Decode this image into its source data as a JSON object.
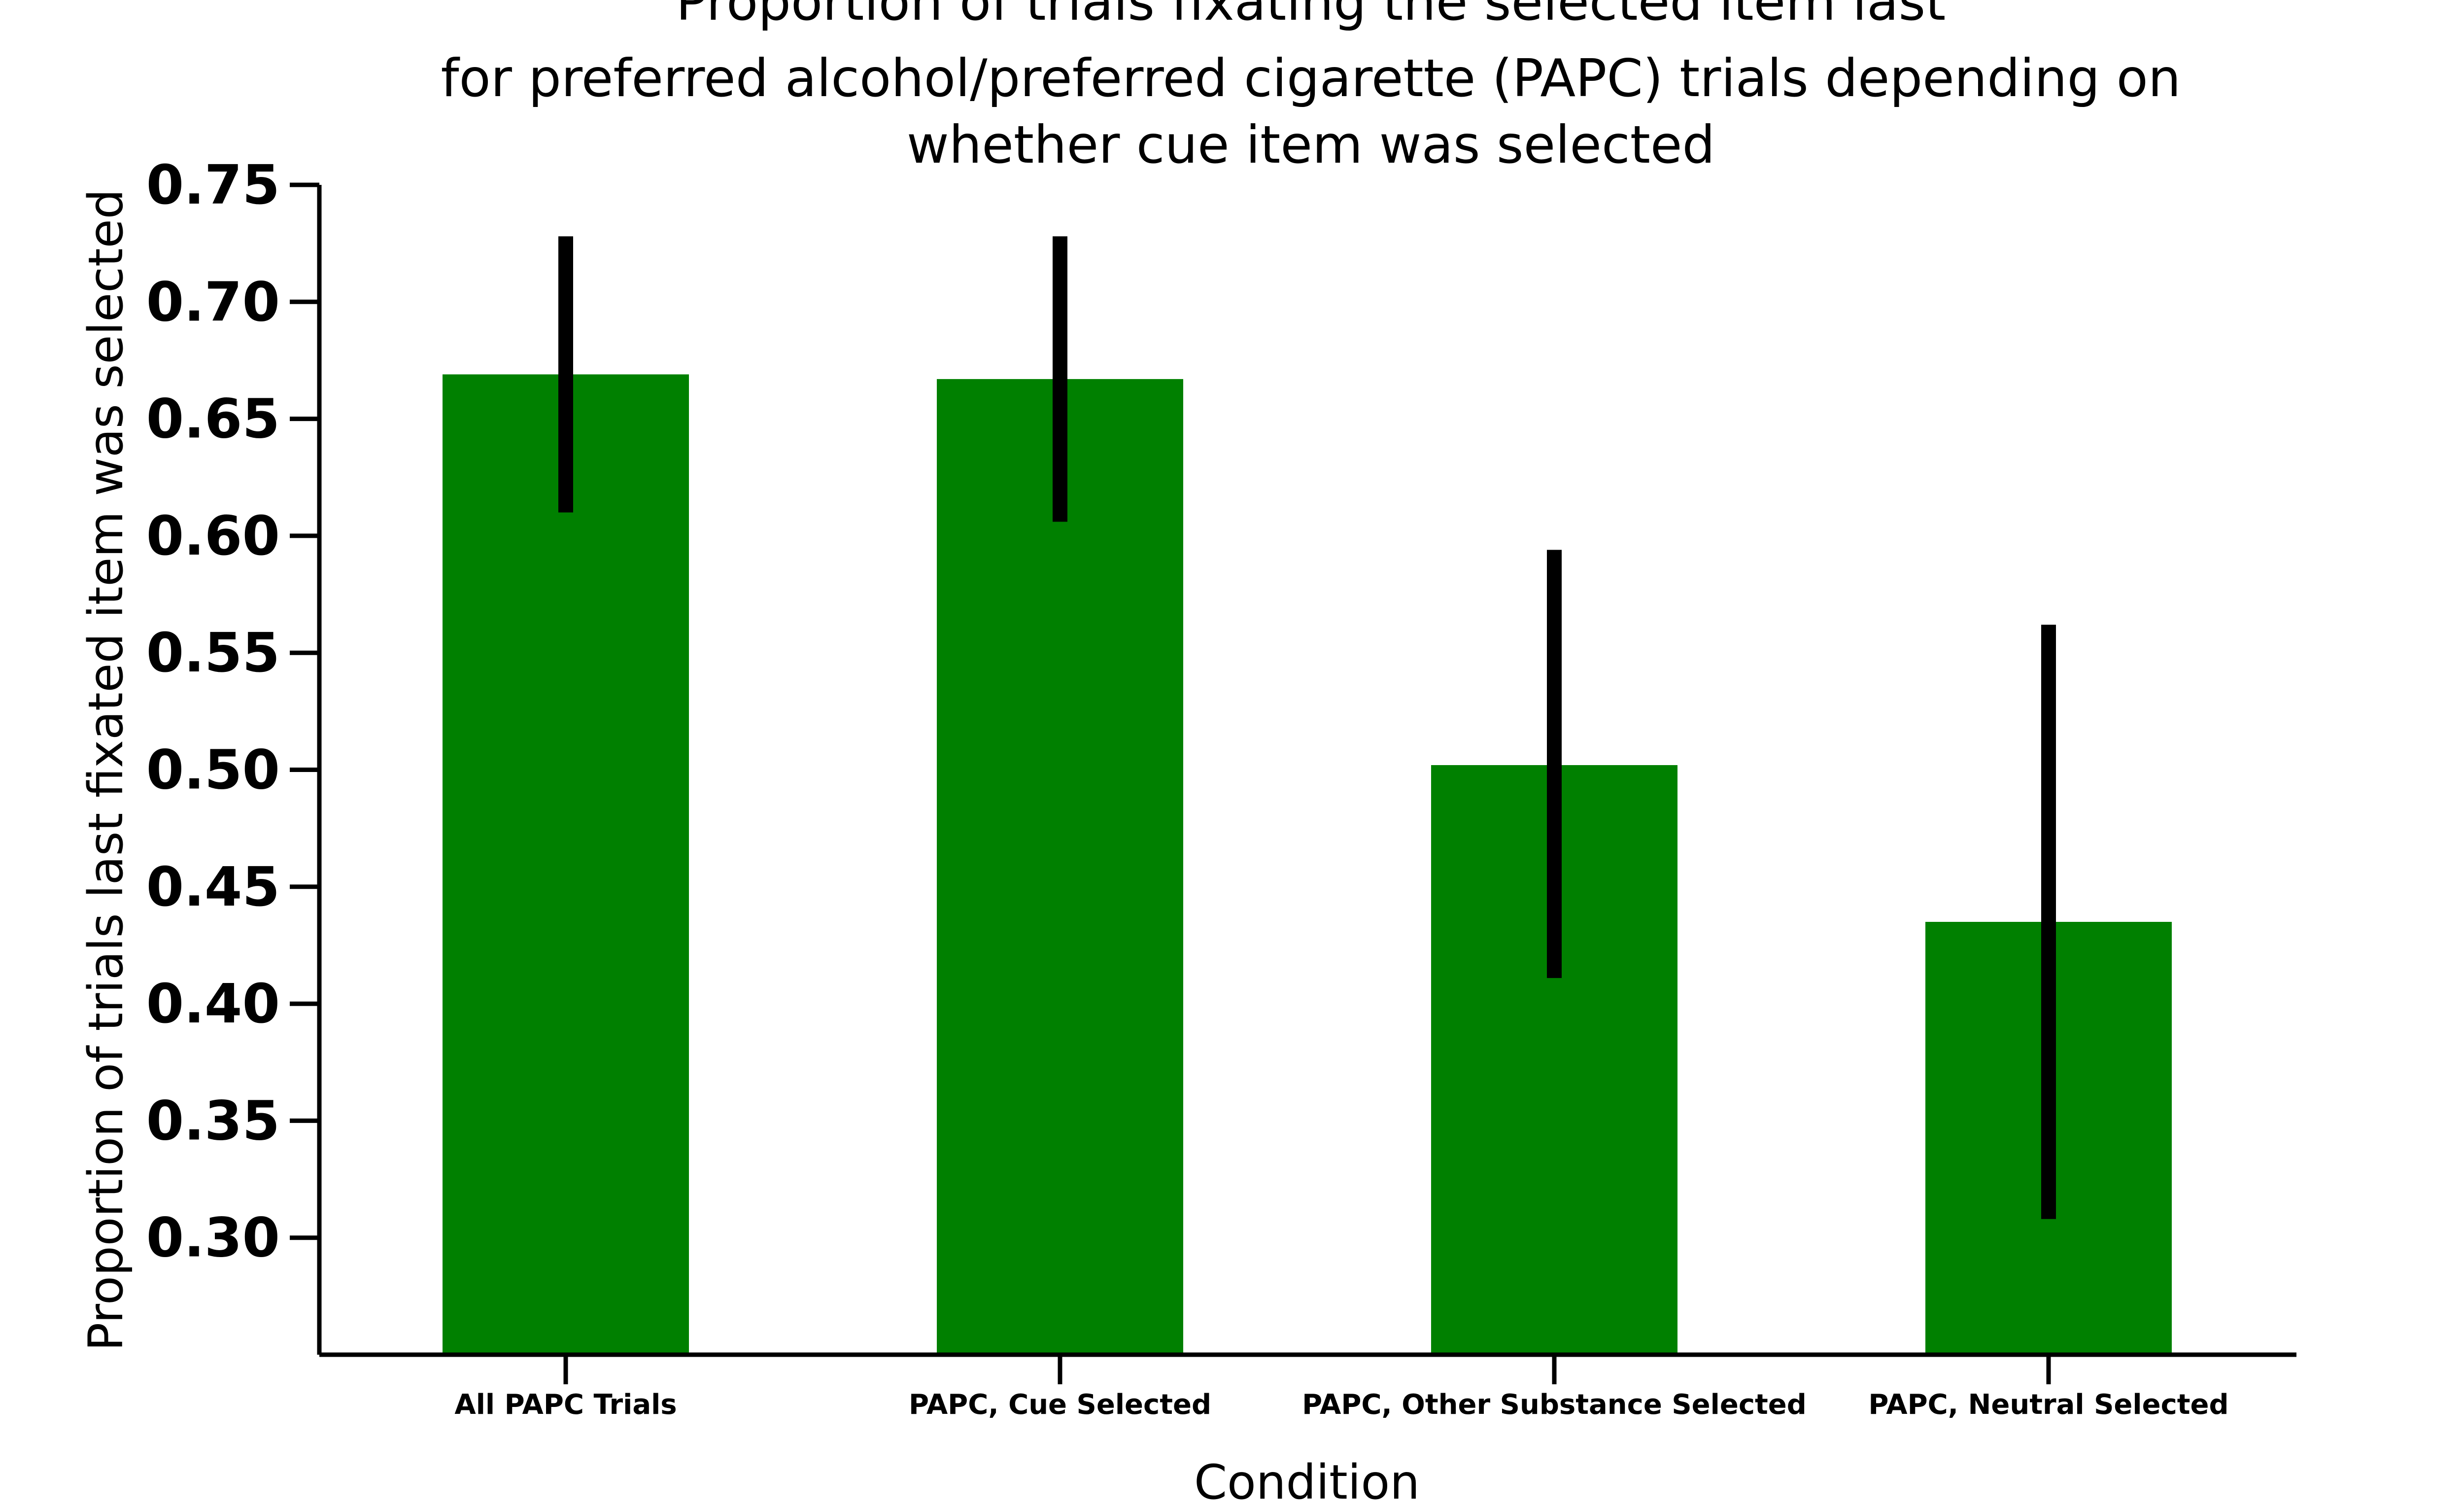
{
  "chart_data": {
    "type": "bar",
    "title_lines": [
      "Proportion of trials fixating the selected item last",
      "for preferred alcohol/preferred cigarette (PAPC) trials depending on",
      "whether cue item was selected"
    ],
    "xlabel": "Condition",
    "ylabel": "Proportion of trials last fixated item was selected",
    "categories": [
      "All PAPC Trials",
      "PAPC, Cue Selected",
      "PAPC, Other Substance Selected",
      "PAPC, Neutral Selected"
    ],
    "values": [
      0.669,
      0.667,
      0.502,
      0.435
    ],
    "error_low": [
      0.61,
      0.606,
      0.411,
      0.308
    ],
    "error_high": [
      0.728,
      0.728,
      0.594,
      0.562
    ],
    "ylim": [
      0.25,
      0.75
    ],
    "yticks": [
      0.3,
      0.35,
      0.4,
      0.45,
      0.5,
      0.55,
      0.6,
      0.65,
      0.7,
      0.75
    ],
    "ytick_labels": [
      "0.30",
      "0.35",
      "0.40",
      "0.45",
      "0.50",
      "0.55",
      "0.60",
      "0.65",
      "0.70",
      "0.75"
    ],
    "bar_color": "#008000",
    "error_color": "#000000",
    "grid": false,
    "legend": "none"
  }
}
